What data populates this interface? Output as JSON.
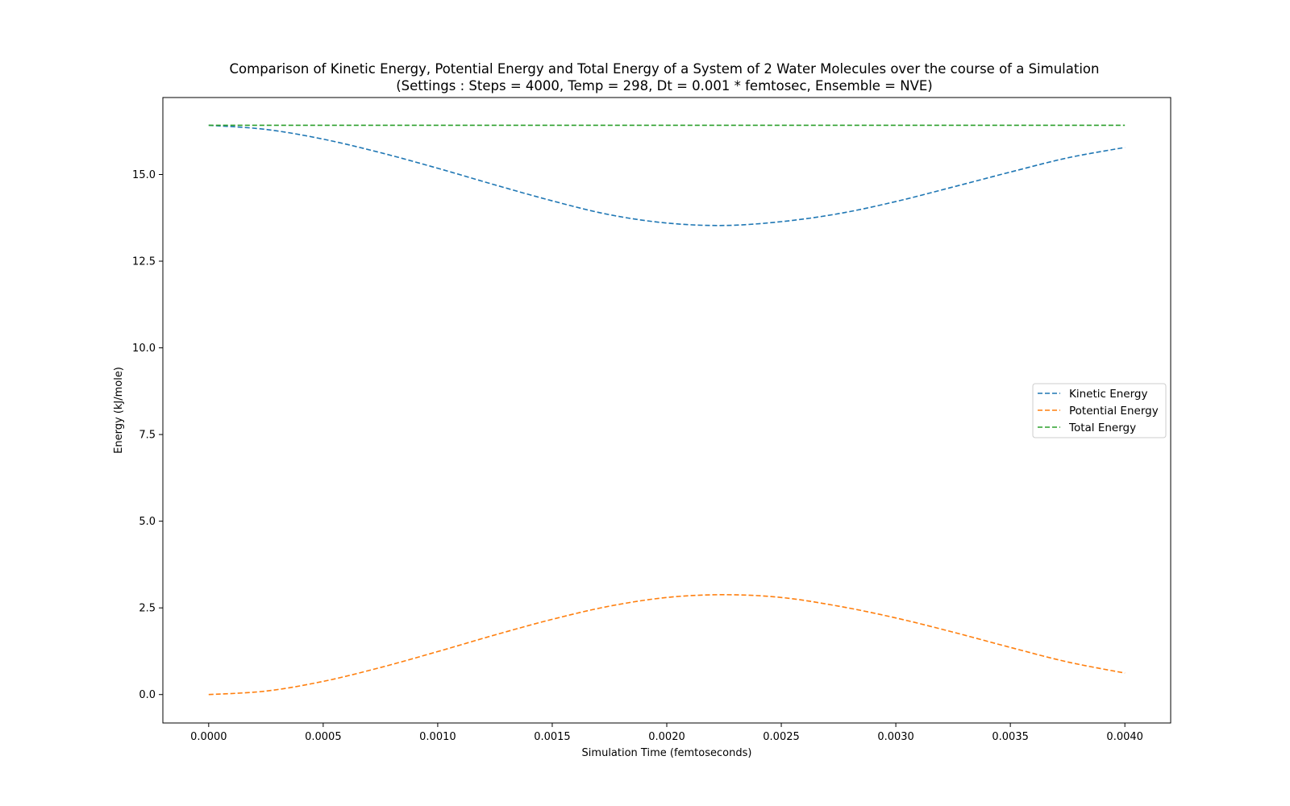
{
  "chart_data": {
    "type": "line",
    "title": "Comparison of Kinetic Energy, Potential Energy and Total Energy of a System of 2 Water Molecules over the course of a Simulation",
    "subtitle": "(Settings : Steps = 4000, Temp = 298, Dt = 0.001 * femtosec, Ensemble = NVE)",
    "xlabel": "Simulation Time (femtoseconds)",
    "ylabel": "Energy (kJ/mole)",
    "xlim": [
      -0.0002,
      0.0042
    ],
    "ylim": [
      -0.82,
      17.22
    ],
    "xticks": [
      0.0,
      0.0005,
      0.001,
      0.0015,
      0.002,
      0.0025,
      0.003,
      0.0035,
      0.004
    ],
    "xtick_labels": [
      "0.0000",
      "0.0005",
      "0.0010",
      "0.0015",
      "0.0020",
      "0.0025",
      "0.0030",
      "0.0035",
      "0.0040"
    ],
    "yticks": [
      0.0,
      2.5,
      5.0,
      7.5,
      10.0,
      12.5,
      15.0
    ],
    "ytick_labels": [
      "0.0",
      "2.5",
      "5.0",
      "7.5",
      "10.0",
      "12.5",
      "15.0"
    ],
    "grid": false,
    "legend_position": "center-right",
    "line_style": "dashed",
    "x": [
      0.0,
      0.00025,
      0.0005,
      0.00075,
      0.001,
      0.00125,
      0.0015,
      0.00175,
      0.002,
      0.00225,
      0.0025,
      0.00275,
      0.003,
      0.00325,
      0.0035,
      0.00375,
      0.004
    ],
    "series": [
      {
        "name": "Kinetic Energy",
        "color": "#1f77b4",
        "values": [
          16.42,
          16.3,
          16.02,
          15.63,
          15.18,
          14.7,
          14.24,
          13.84,
          13.6,
          13.53,
          13.64,
          13.87,
          14.22,
          14.64,
          15.07,
          15.48,
          15.78
        ]
      },
      {
        "name": "Potential Energy",
        "color": "#ff7f0e",
        "values": [
          0.0,
          0.1,
          0.38,
          0.78,
          1.24,
          1.72,
          2.17,
          2.55,
          2.8,
          2.88,
          2.8,
          2.55,
          2.21,
          1.8,
          1.36,
          0.94,
          0.62
        ]
      },
      {
        "name": "Total Energy",
        "color": "#2ca02c",
        "values": [
          16.42,
          16.42,
          16.42,
          16.42,
          16.42,
          16.42,
          16.42,
          16.42,
          16.42,
          16.42,
          16.42,
          16.42,
          16.42,
          16.42,
          16.42,
          16.42,
          16.42
        ]
      }
    ]
  }
}
